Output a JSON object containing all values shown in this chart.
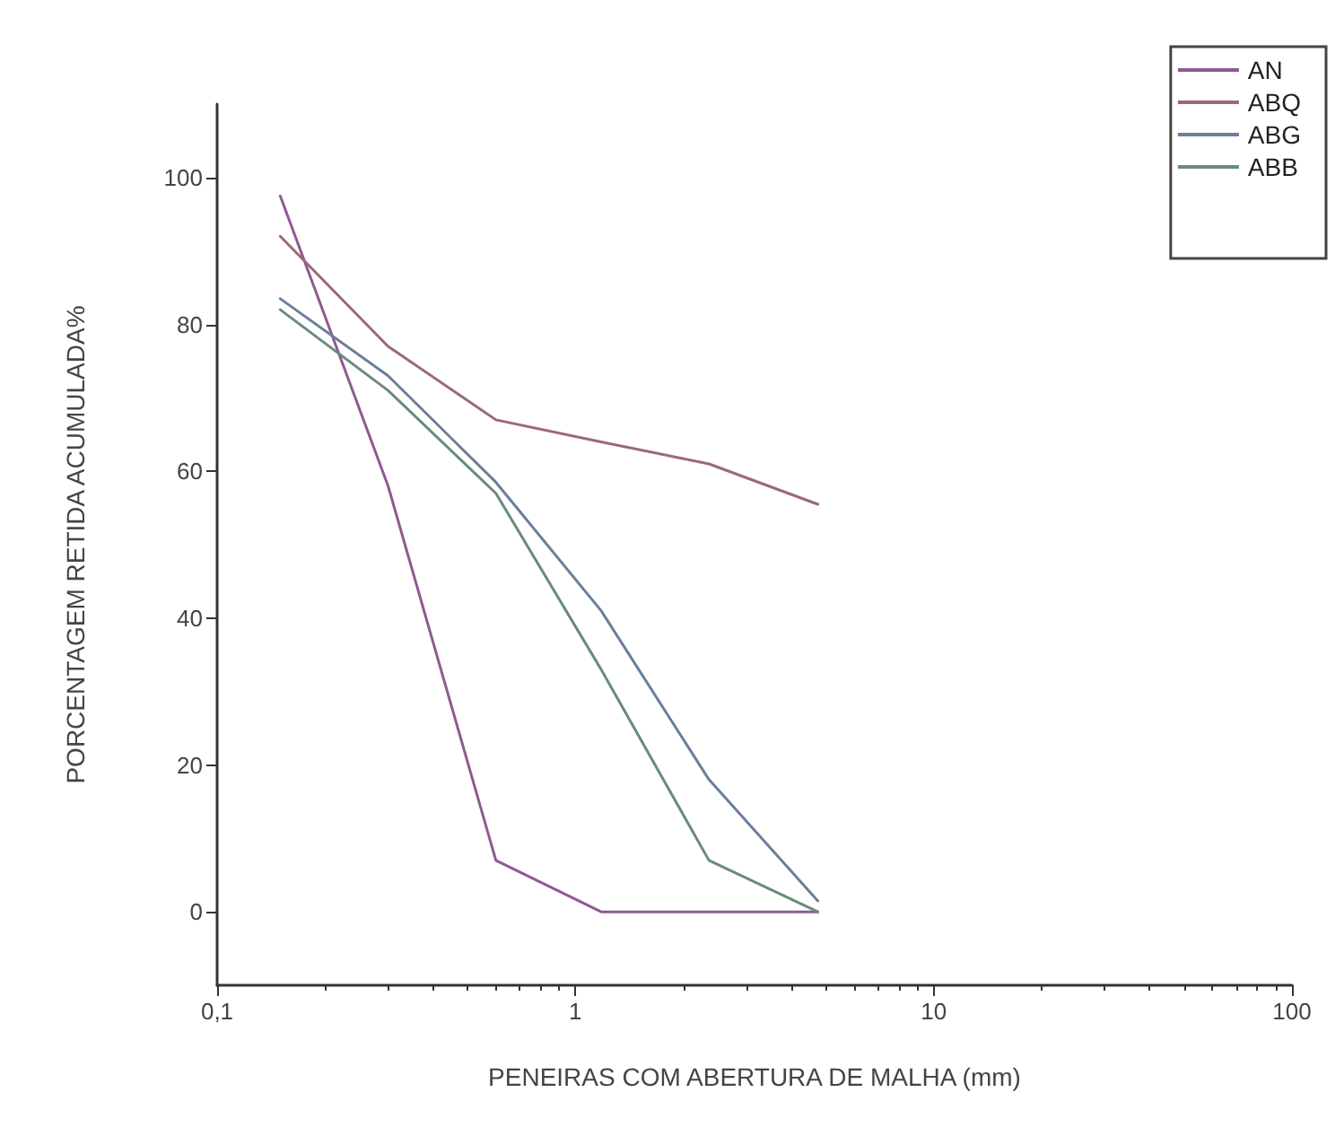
{
  "chart_data": {
    "type": "line",
    "xlabel": "PENEIRAS COM ABERTURA DE MALHA (mm)",
    "ylabel": "PORCENTAGEM RETIDA ACUMULADA%",
    "x": [
      0.15,
      0.3,
      0.6,
      1.18,
      2.36,
      4.75
    ],
    "series": [
      {
        "name": "AN",
        "color": "#8e5a93",
        "values": [
          97.5,
          58,
          7,
          0,
          0,
          0
        ]
      },
      {
        "name": "ABQ",
        "color": "#9a6a72",
        "values": [
          92,
          77,
          67,
          64,
          61,
          55.5
        ]
      },
      {
        "name": "ABG",
        "color": "#6a7f9a",
        "values": [
          83.5,
          73,
          58.5,
          41,
          18,
          1.5
        ]
      },
      {
        "name": "ABB",
        "color": "#6a8a80",
        "values": [
          82,
          71,
          57,
          33,
          7,
          0
        ]
      }
    ],
    "log": "x",
    "xlim": [
      0.1,
      100
    ],
    "xticks": [
      {
        "value": 0.1,
        "label": "0,1"
      },
      1,
      10,
      100
    ],
    "ylim": [
      -10,
      110
    ],
    "yticks": [
      0,
      20,
      40,
      60,
      80,
      100
    ],
    "grid": false,
    "legend": "top right",
    "marker": "none",
    "line_style": "solid"
  }
}
